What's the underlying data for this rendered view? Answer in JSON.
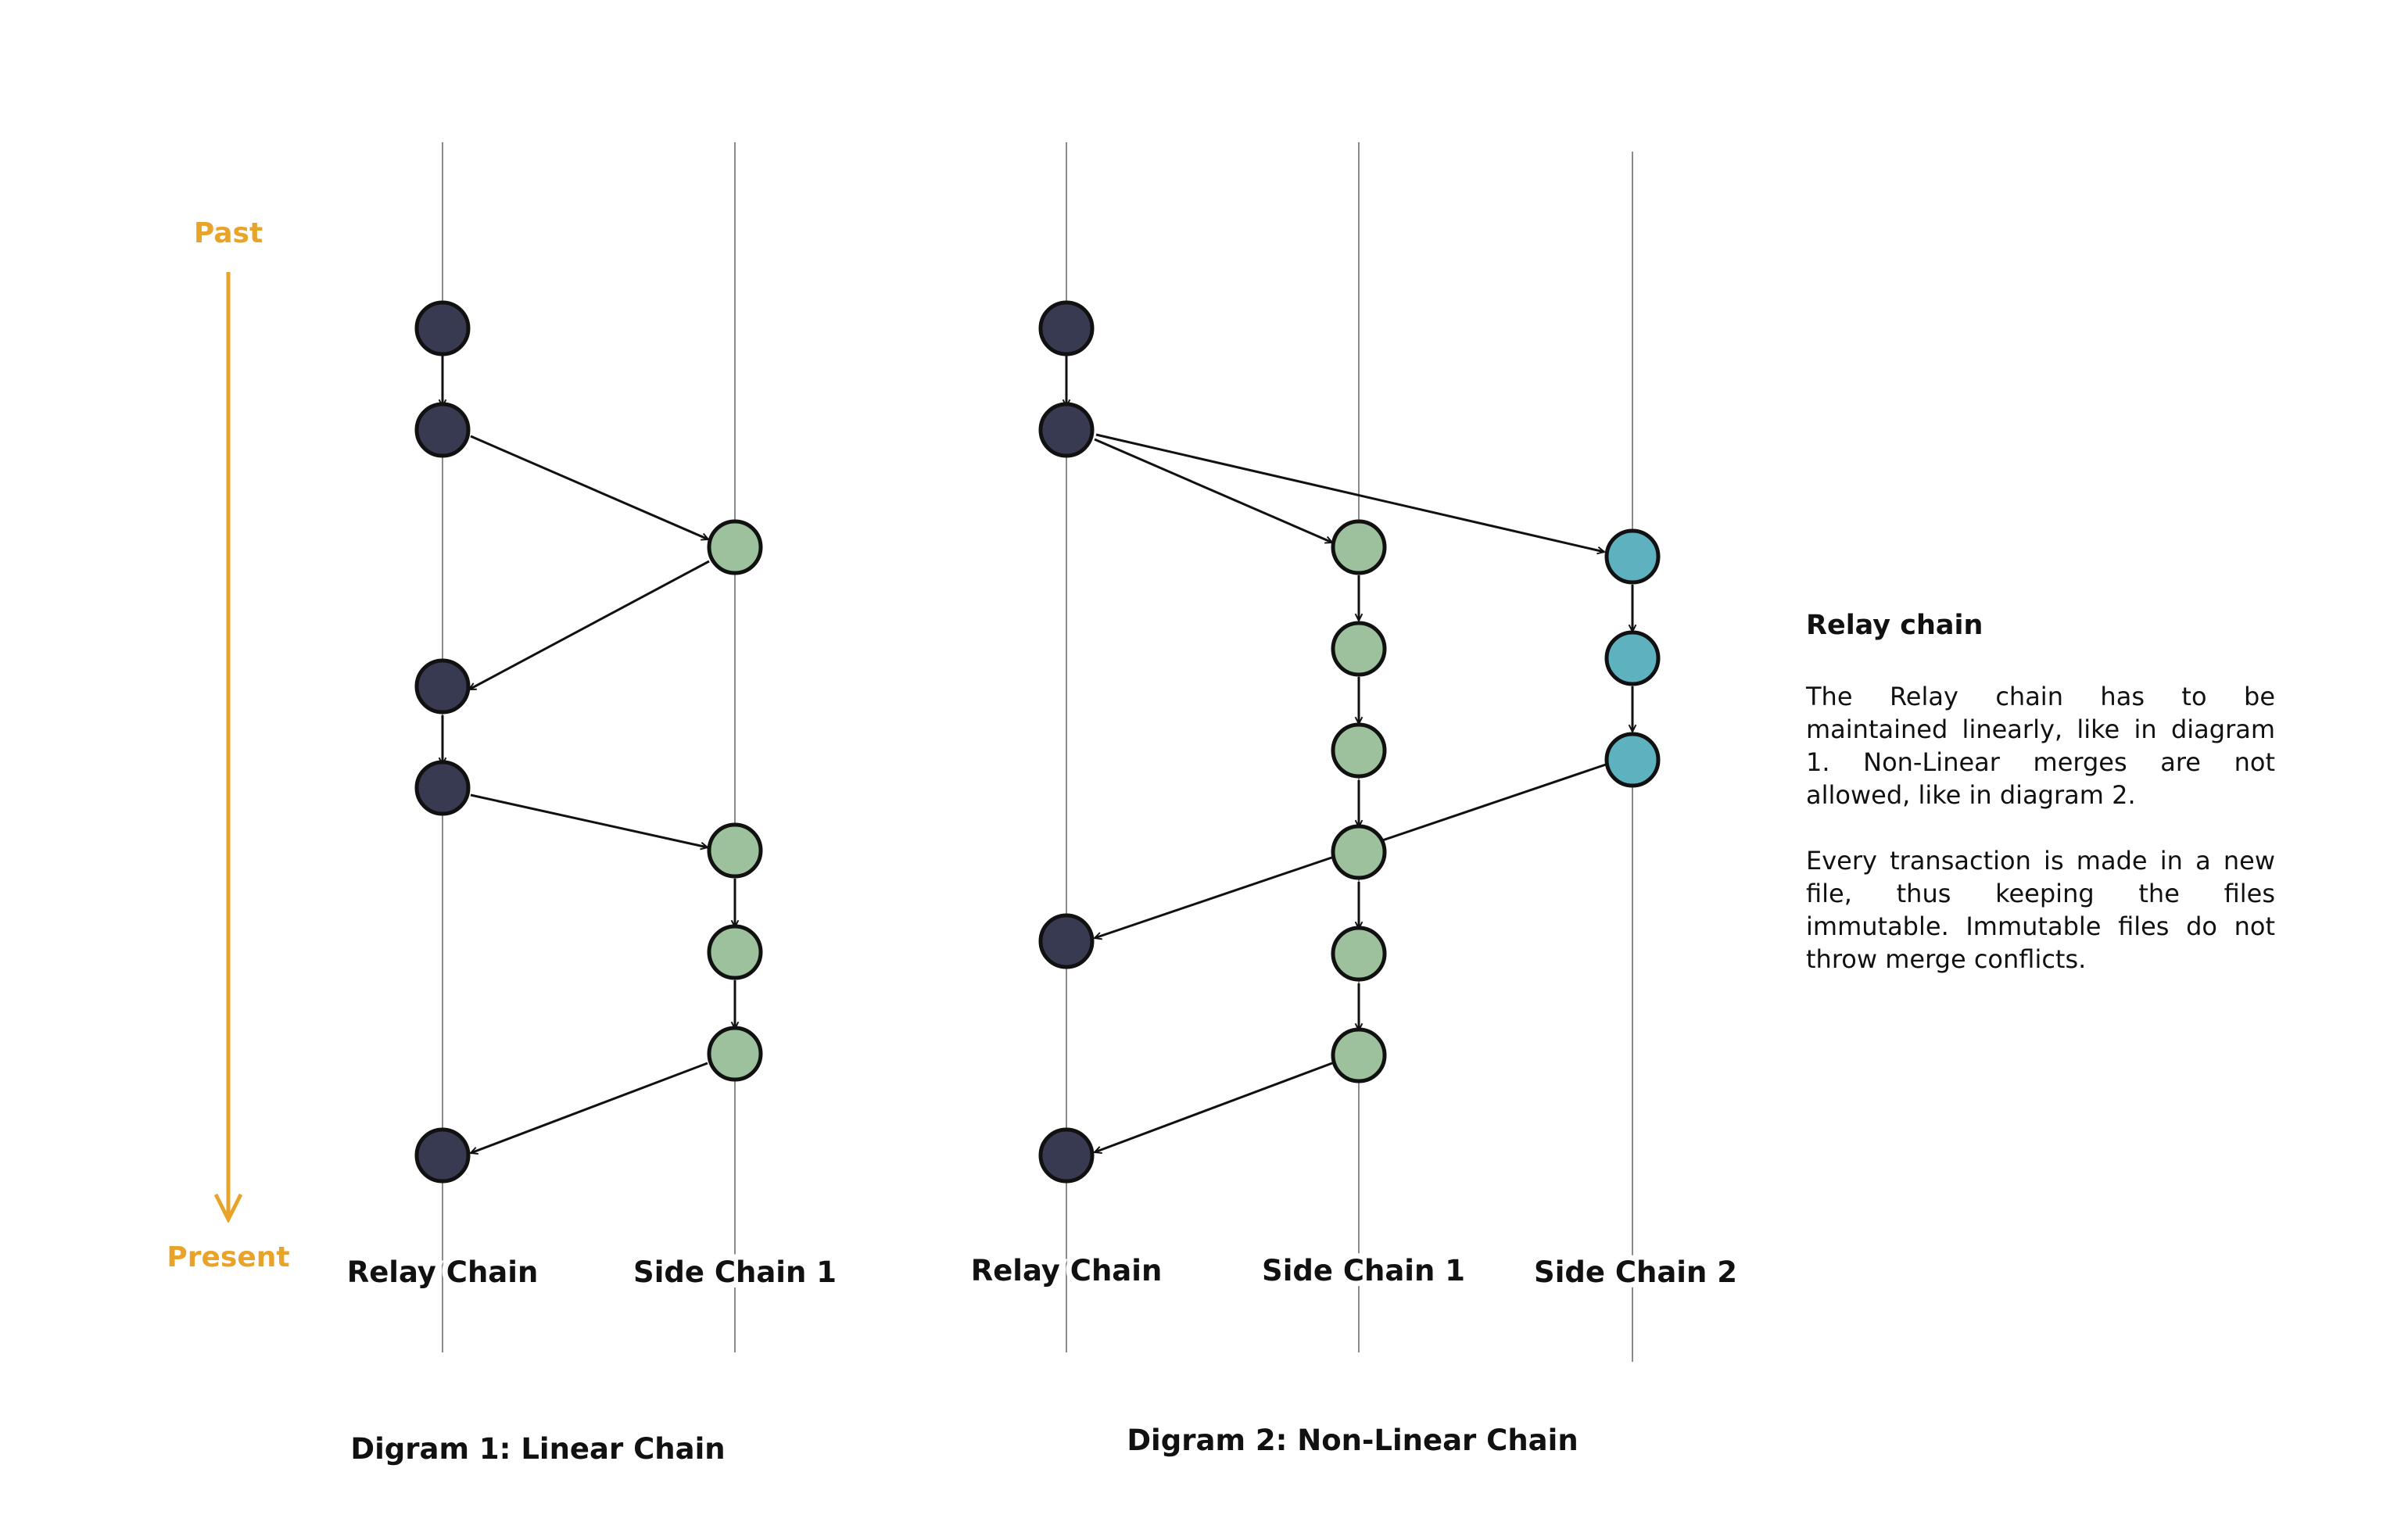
{
  "colors": {
    "relay": "#383a52",
    "side_chain_1": "#9dc19c",
    "side_chain_2": "#5eb2bf",
    "timeline": "#e8a42a",
    "stroke": "#111111",
    "lane": "#8a8a8a"
  },
  "timeline": {
    "past": "Past",
    "present": "Present"
  },
  "diagrams": [
    {
      "caption": "Digram 1: Linear Chain",
      "lanes": [
        {
          "label": "Relay Chain"
        },
        {
          "label": "Side Chain 1"
        }
      ]
    },
    {
      "caption": "Digram 2: Non-Linear Chain",
      "lanes": [
        {
          "label": "Relay Chain"
        },
        {
          "label": "Side Chain 1"
        },
        {
          "label": "Side Chain 2"
        }
      ]
    }
  ],
  "notes": {
    "title": "Relay chain",
    "paragraphs": [
      "The Relay chain has to be maintained linearly, like in diagram 1. Non-Linear merges are not allowed, like in diagram 2.",
      "Every transaction is made in a new file, thus keeping the files immutable. Immutable files do not throw merge conflicts."
    ]
  }
}
